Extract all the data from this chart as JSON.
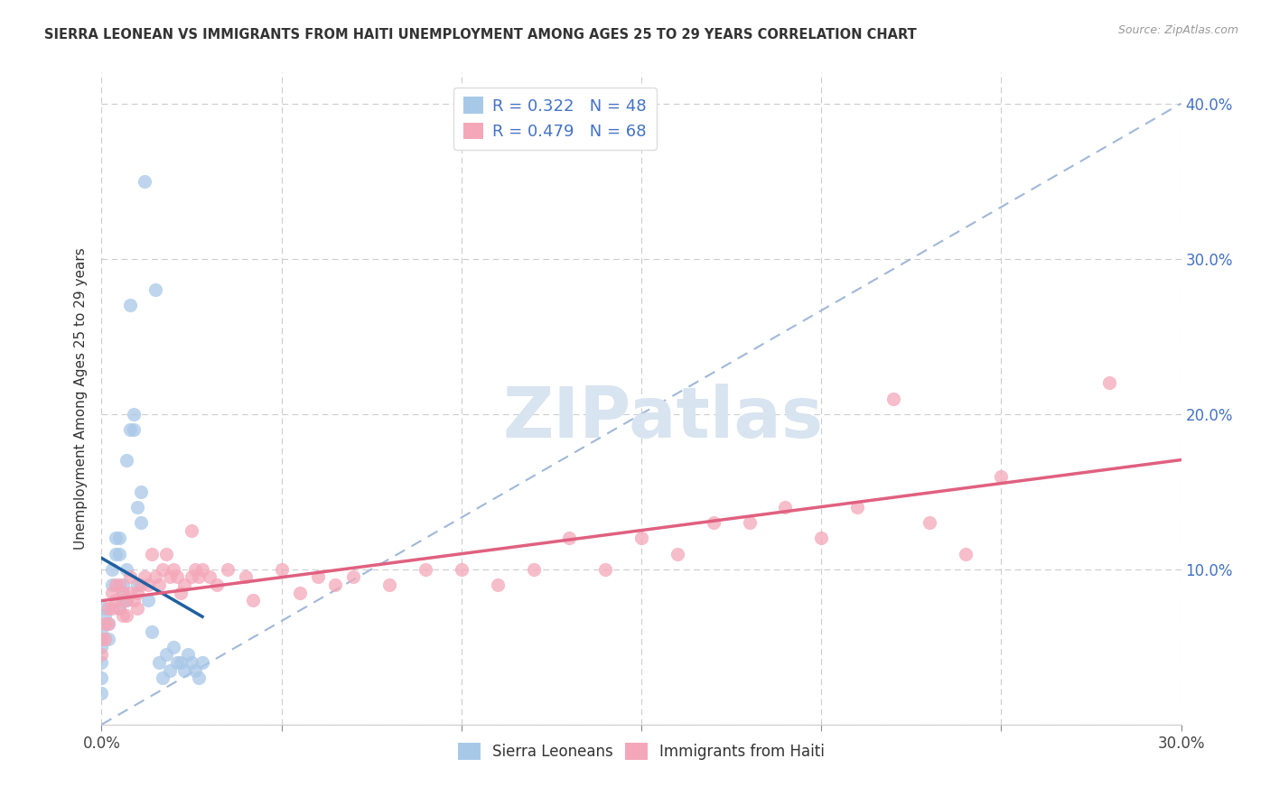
{
  "title": "SIERRA LEONEAN VS IMMIGRANTS FROM HAITI UNEMPLOYMENT AMONG AGES 25 TO 29 YEARS CORRELATION CHART",
  "source": "Source: ZipAtlas.com",
  "ylabel": "Unemployment Among Ages 25 to 29 years",
  "xlim": [
    0.0,
    0.3
  ],
  "ylim": [
    0.0,
    0.42
  ],
  "x_ticks": [
    0.0,
    0.05,
    0.1,
    0.15,
    0.2,
    0.25,
    0.3
  ],
  "y_ticks_right": [
    0.0,
    0.1,
    0.2,
    0.3,
    0.4
  ],
  "y_tick_labels_right": [
    "",
    "10.0%",
    "20.0%",
    "30.0%",
    "40.0%"
  ],
  "color_blue": "#a8c8e8",
  "color_pink": "#f4a7b9",
  "color_blue_line": "#2060a0",
  "color_pink_line": "#e06080",
  "color_dash": "#a0b8d8",
  "watermark_color": "#d8e4f0",
  "sierra_x": [
    0.0,
    0.0,
    0.0,
    0.0,
    0.0,
    0.0,
    0.001,
    0.001,
    0.002,
    0.002,
    0.003,
    0.003,
    0.004,
    0.004,
    0.005,
    0.005,
    0.005,
    0.006,
    0.006,
    0.006,
    0.007,
    0.007,
    0.007,
    0.008,
    0.008,
    0.009,
    0.009,
    0.01,
    0.01,
    0.011,
    0.011,
    0.012,
    0.013,
    0.014,
    0.015,
    0.016,
    0.017,
    0.018,
    0.019,
    0.02,
    0.021,
    0.022,
    0.023,
    0.024,
    0.025,
    0.026,
    0.027,
    0.028
  ],
  "sierra_y": [
    0.06,
    0.055,
    0.05,
    0.04,
    0.03,
    0.02,
    0.07,
    0.075,
    0.065,
    0.055,
    0.09,
    0.1,
    0.11,
    0.12,
    0.12,
    0.11,
    0.075,
    0.09,
    0.085,
    0.08,
    0.17,
    0.1,
    0.08,
    0.27,
    0.19,
    0.2,
    0.19,
    0.14,
    0.09,
    0.15,
    0.13,
    0.35,
    0.08,
    0.06,
    0.28,
    0.04,
    0.03,
    0.045,
    0.035,
    0.05,
    0.04,
    0.04,
    0.035,
    0.045,
    0.04,
    0.035,
    0.03,
    0.04
  ],
  "haiti_x": [
    0.0,
    0.0,
    0.001,
    0.001,
    0.002,
    0.002,
    0.003,
    0.003,
    0.004,
    0.004,
    0.005,
    0.005,
    0.006,
    0.006,
    0.007,
    0.007,
    0.008,
    0.008,
    0.009,
    0.01,
    0.01,
    0.011,
    0.012,
    0.013,
    0.014,
    0.015,
    0.016,
    0.017,
    0.018,
    0.019,
    0.02,
    0.021,
    0.022,
    0.023,
    0.025,
    0.025,
    0.026,
    0.027,
    0.028,
    0.03,
    0.032,
    0.035,
    0.04,
    0.042,
    0.05,
    0.055,
    0.06,
    0.065,
    0.07,
    0.08,
    0.09,
    0.1,
    0.11,
    0.12,
    0.13,
    0.14,
    0.15,
    0.16,
    0.17,
    0.18,
    0.19,
    0.2,
    0.21,
    0.22,
    0.23,
    0.24,
    0.25,
    0.28
  ],
  "haiti_y": [
    0.055,
    0.045,
    0.065,
    0.055,
    0.075,
    0.065,
    0.085,
    0.075,
    0.09,
    0.08,
    0.09,
    0.075,
    0.085,
    0.07,
    0.08,
    0.07,
    0.095,
    0.085,
    0.08,
    0.085,
    0.075,
    0.09,
    0.095,
    0.09,
    0.11,
    0.095,
    0.09,
    0.1,
    0.11,
    0.095,
    0.1,
    0.095,
    0.085,
    0.09,
    0.125,
    0.095,
    0.1,
    0.095,
    0.1,
    0.095,
    0.09,
    0.1,
    0.095,
    0.08,
    0.1,
    0.085,
    0.095,
    0.09,
    0.095,
    0.09,
    0.1,
    0.1,
    0.09,
    0.1,
    0.12,
    0.1,
    0.12,
    0.11,
    0.13,
    0.13,
    0.14,
    0.12,
    0.14,
    0.21,
    0.13,
    0.11,
    0.16,
    0.22
  ]
}
